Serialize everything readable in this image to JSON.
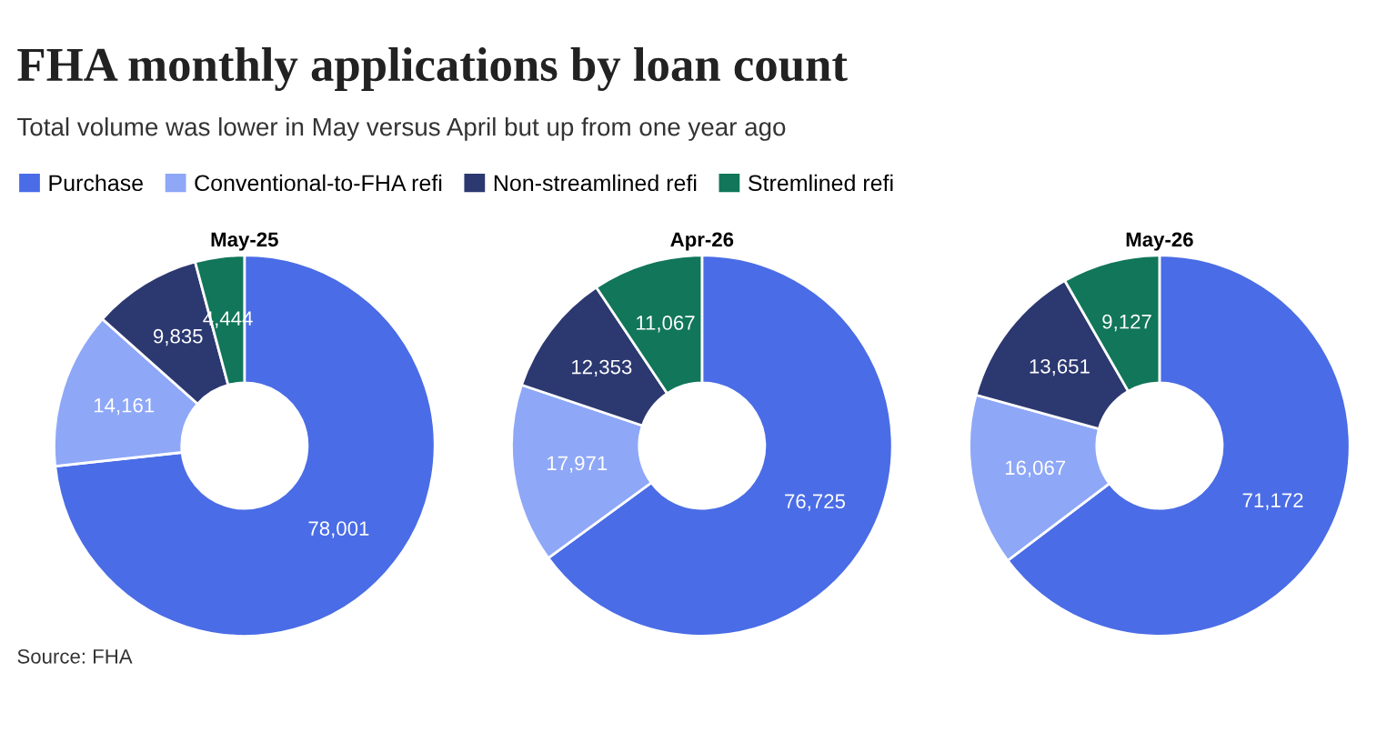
{
  "chart_data": [
    {
      "type": "other",
      "title": "FHA monthly applications by loan count",
      "subtitle": "Total volume was lower in May versus April but up from one year ago",
      "annotations": [
        "Source: FHA"
      ]
    },
    {
      "type": "donut",
      "title": "May-25",
      "categories": [
        "Purchase",
        "Conventional-to-FHA refi",
        "Non-streamlined refi",
        "Stremlined refi"
      ],
      "values": [
        78001,
        14161,
        9835,
        4444
      ],
      "value_labels": [
        "78,001",
        "14,161",
        "9,835",
        "4,444"
      ],
      "colors": [
        "#4a6ce6",
        "#8ea7f7",
        "#2c3870",
        "#11765a"
      ],
      "legend": "top"
    },
    {
      "type": "donut",
      "title": "Apr-26",
      "categories": [
        null,
        null,
        null,
        null
      ],
      "values": [
        76725,
        17971,
        12353,
        11067
      ],
      "value_labels": [
        "76,725",
        "17,971",
        "12,353",
        "11,067"
      ],
      "colors": [
        "#4a6ce6",
        "#8ea7f7",
        "#2c3870",
        "#11765a"
      ]
    },
    {
      "type": "donut",
      "title": "May-26",
      "categories": [
        null,
        null,
        null,
        null
      ],
      "values": [
        71172,
        16067,
        13651,
        9127
      ],
      "value_labels": [
        "71,172",
        "16,067",
        "13,651",
        "9,127"
      ],
      "colors": [
        "#4a6ce6",
        "#8ea7f7",
        "#2c3870",
        "#11765a"
      ]
    }
  ]
}
